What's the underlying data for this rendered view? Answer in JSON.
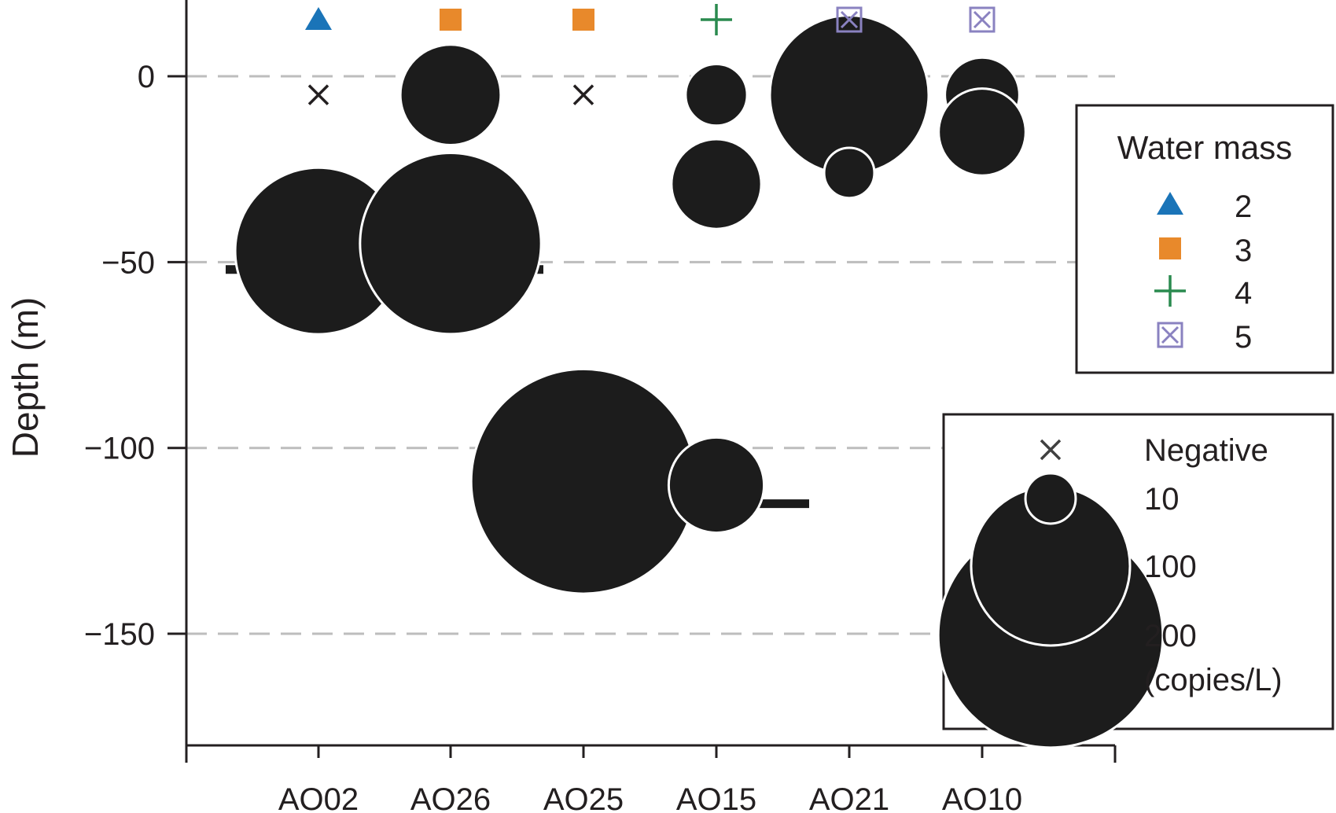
{
  "chart_data": {
    "type": "scatter",
    "subtype": "bubble",
    "ylabel": "Depth (m)",
    "xlabel": "",
    "ylim": [
      -180,
      20
    ],
    "yticks": [
      0,
      -50,
      -100,
      -150
    ],
    "ytick_labels": [
      "0",
      "−50",
      "−100",
      "−150"
    ],
    "grid": "horizontal dashed at y ticks",
    "categories": [
      "AO02",
      "AO26",
      "AO25",
      "AO15",
      "AO21",
      "AO10"
    ],
    "water_mass": {
      "legend_title": "Water mass",
      "entries": [
        {
          "label": "2",
          "marker": "triangle",
          "color": "#1a74b8"
        },
        {
          "label": "3",
          "marker": "square",
          "color": "#e8892b"
        },
        {
          "label": "4",
          "marker": "plus",
          "color": "#2a8a4f"
        },
        {
          "label": "5",
          "marker": "boxed-x",
          "color": "#8a82c0"
        }
      ],
      "station_water_mass": [
        "2",
        "3",
        "3",
        "4",
        "5",
        "5"
      ]
    },
    "points": [
      {
        "station": "AO02",
        "depth": -5,
        "copies_per_L": null,
        "negative": true
      },
      {
        "station": "AO02",
        "depth": -47,
        "copies_per_L": 110
      },
      {
        "station": "AO26",
        "depth": -5,
        "copies_per_L": 40
      },
      {
        "station": "AO26",
        "depth": -45,
        "copies_per_L": 130
      },
      {
        "station": "AO25",
        "depth": -5,
        "copies_per_L": null,
        "negative": true
      },
      {
        "station": "AO25",
        "depth": -109,
        "copies_per_L": 200
      },
      {
        "station": "AO15",
        "depth": -5,
        "copies_per_L": 15
      },
      {
        "station": "AO15",
        "depth": -29,
        "copies_per_L": 32
      },
      {
        "station": "AO15",
        "depth": -110,
        "copies_per_L": 36
      },
      {
        "station": "AO21",
        "depth": -5,
        "copies_per_L": 100
      },
      {
        "station": "AO21",
        "depth": -26,
        "copies_per_L": 10
      },
      {
        "station": "AO10",
        "depth": -5,
        "copies_per_L": 22
      },
      {
        "station": "AO10",
        "depth": -15,
        "copies_per_L": 30
      }
    ],
    "horizontal_bars": [
      {
        "from": "AO02",
        "to": "AO26",
        "depth": -52,
        "note": "from left of AO02 to right of AO26"
      },
      {
        "from": "AO25",
        "to": "AO15",
        "depth": -115,
        "note": "from left of AO25 to right of AO15"
      }
    ],
    "size_legend": {
      "entries": [
        {
          "label": "Negative",
          "marker": "x"
        },
        {
          "label": "10",
          "value": 10
        },
        {
          "label": "100",
          "value": 100
        },
        {
          "label": "200",
          "value": 200
        }
      ],
      "unit_label": "(copies/L)"
    }
  }
}
